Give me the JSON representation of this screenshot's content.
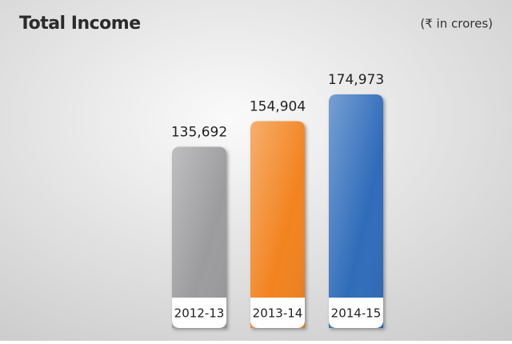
{
  "chart_data": {
    "type": "bar",
    "title": "Total Income",
    "subtitle": "(₹ in crores)",
    "categories": [
      "2012-13",
      "2013-14",
      "2014-15"
    ],
    "values": [
      135692,
      154904,
      174973
    ],
    "value_labels": [
      "135,692",
      "154,904",
      "174,973"
    ],
    "colors": [
      "#9c9c9e",
      "#f2831f",
      "#2f6cba"
    ]
  }
}
